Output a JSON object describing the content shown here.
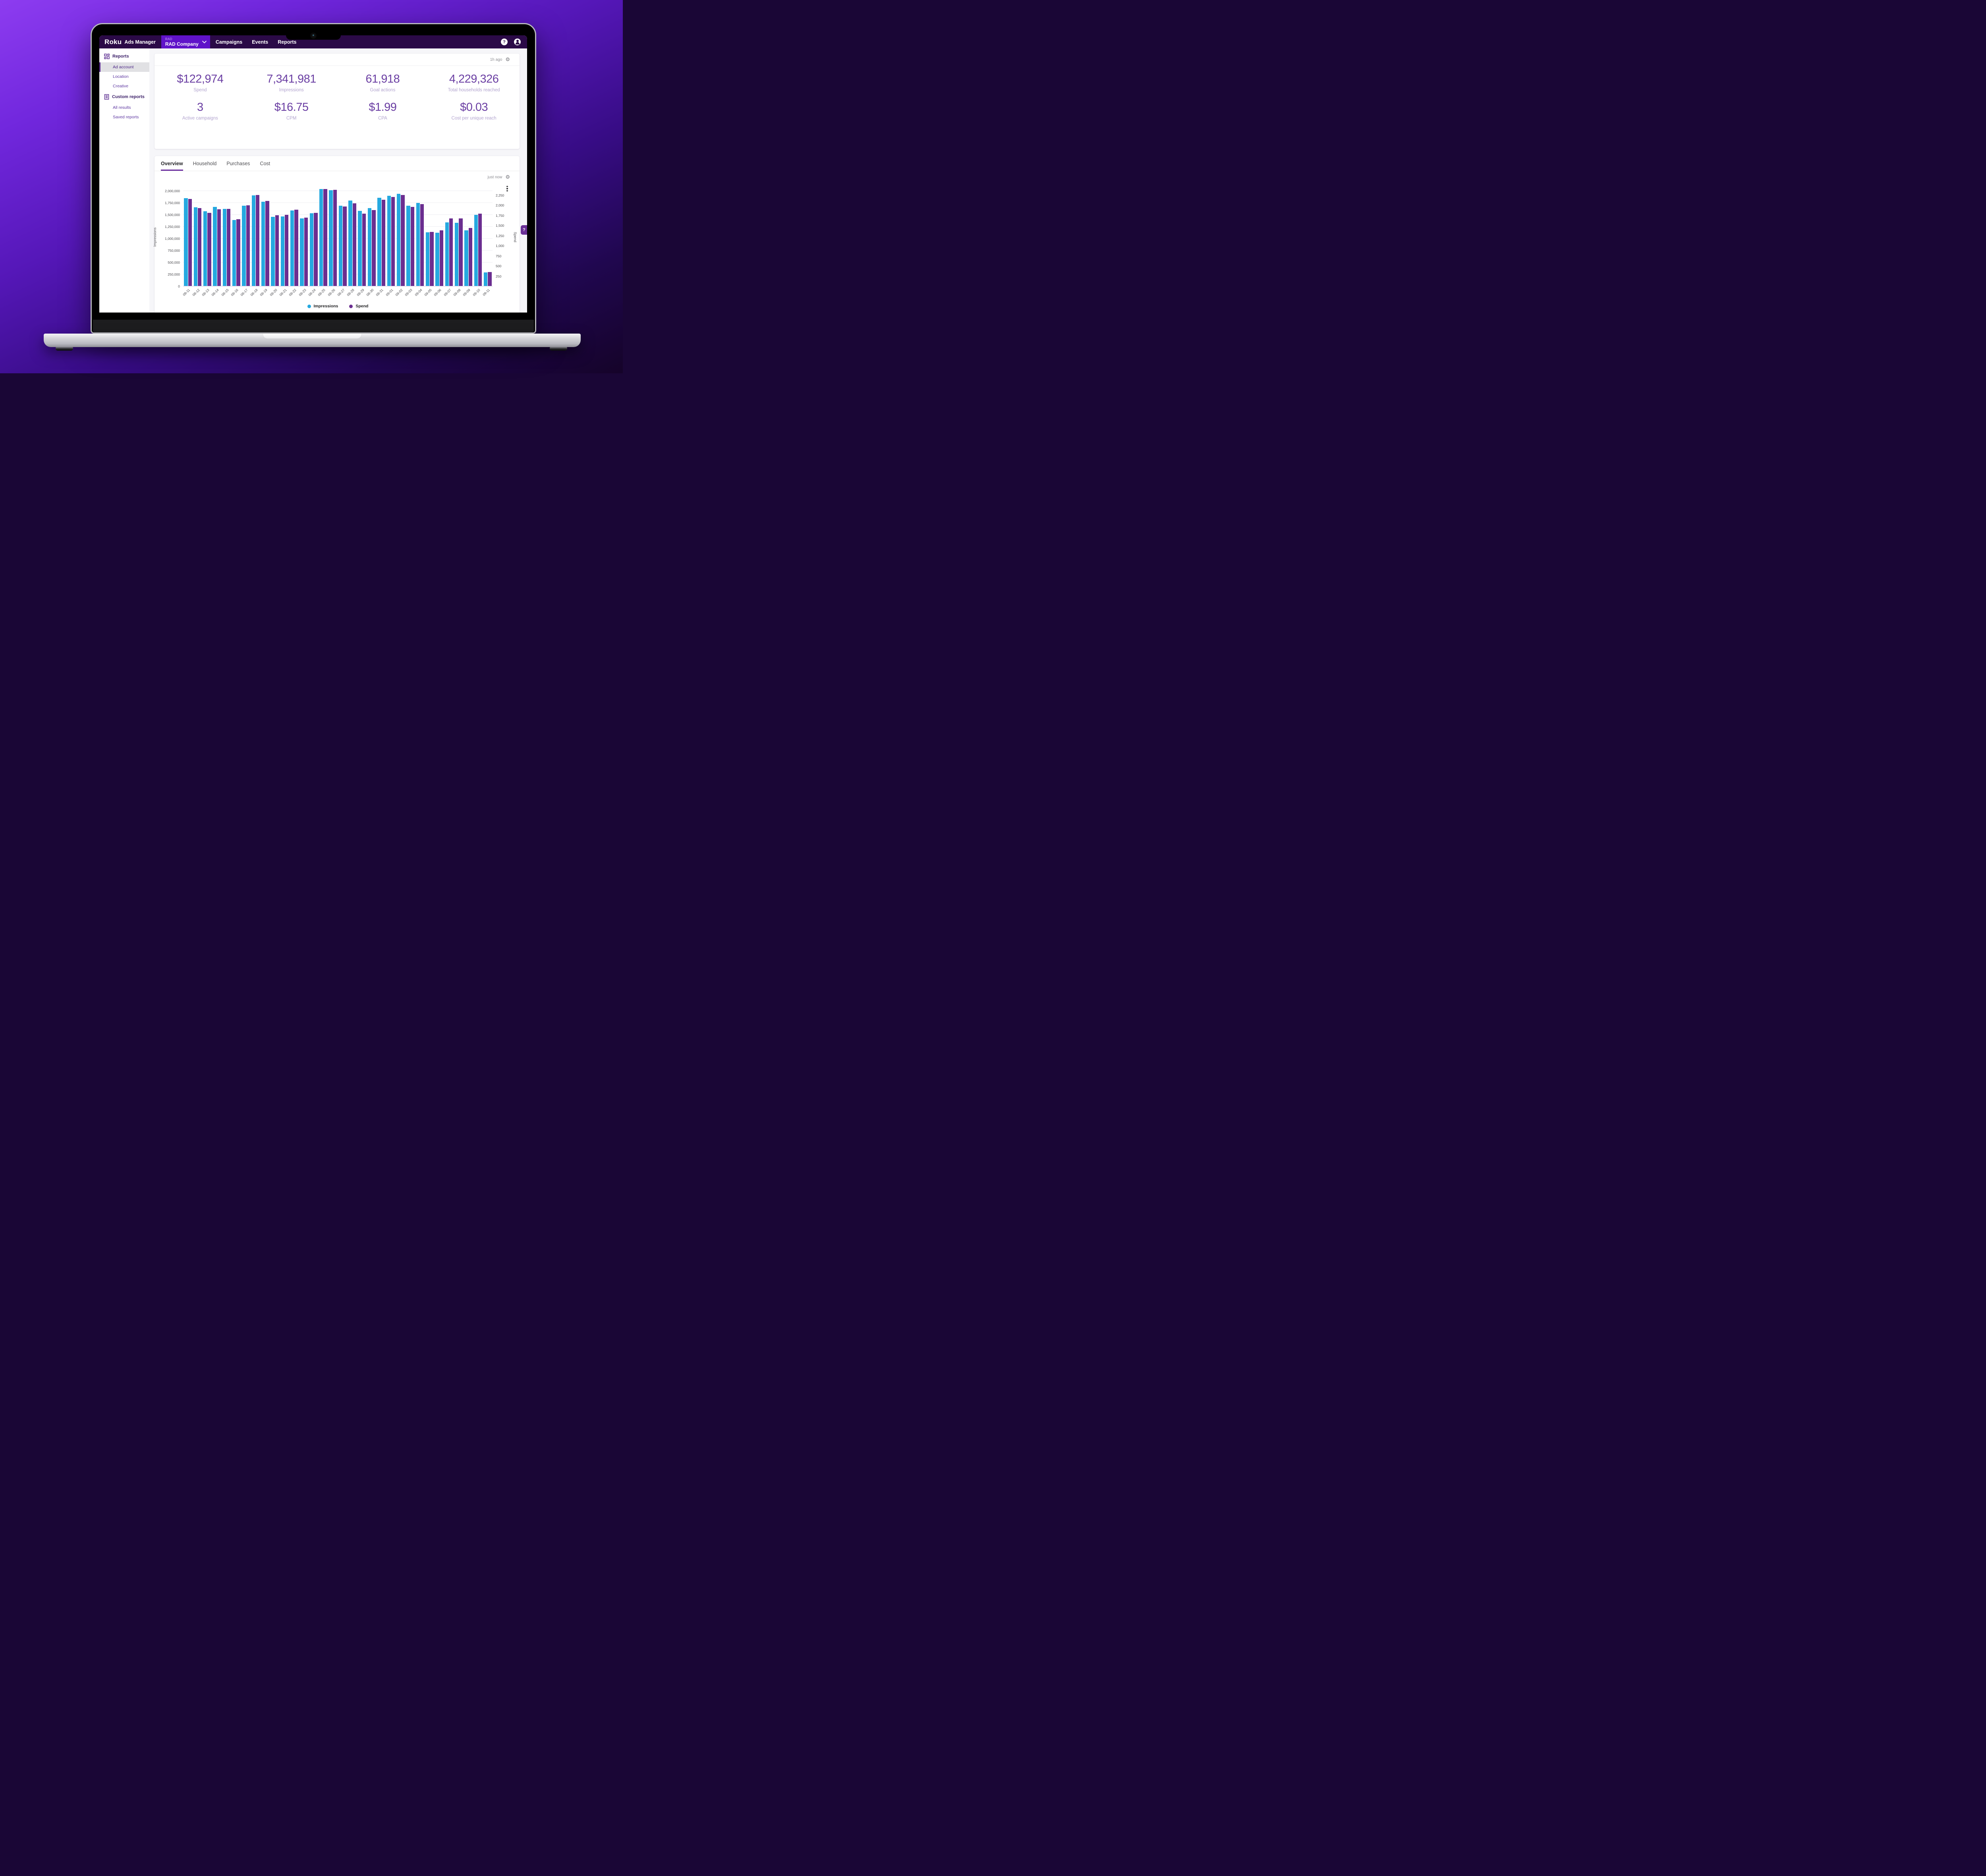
{
  "nav": {
    "brand": {
      "logo": "Roku",
      "product": "Ads Manager"
    },
    "account": {
      "eyebrow": "RAD",
      "name": "RAD Company"
    },
    "items": [
      {
        "label": "Campaigns"
      },
      {
        "label": "Events"
      },
      {
        "label": "Reports"
      }
    ],
    "icons": [
      "help-icon",
      "profile-icon"
    ]
  },
  "sidebar": {
    "sections": [
      {
        "header": "Reports",
        "icon": "dashboard-grid-icon",
        "items": [
          {
            "label": "Ad account",
            "selected": true
          },
          {
            "label": "Location",
            "selected": false
          },
          {
            "label": "Creative",
            "selected": false
          }
        ]
      },
      {
        "header": "Custom reports",
        "icon": "document-icon",
        "items": [
          {
            "label": "All results",
            "selected": false
          },
          {
            "label": "Saved reports",
            "selected": false
          }
        ]
      }
    ]
  },
  "stats_card": {
    "updated": "1h ago",
    "rows": [
      [
        {
          "value": "$122,974",
          "label": "Spend"
        },
        {
          "value": "7,341,981",
          "label": "Impressions"
        },
        {
          "value": "61,918",
          "label": "Goal actions"
        },
        {
          "value": "4,229,326",
          "label": "Total households reached"
        }
      ],
      [
        {
          "value": "3",
          "label": "Active campaigns"
        },
        {
          "value": "$16.75",
          "label": "CPM"
        },
        {
          "value": "$1.99",
          "label": "CPA"
        },
        {
          "value": "$0.03",
          "label": "Cost per unique reach"
        }
      ]
    ]
  },
  "chart_card": {
    "tabs": [
      {
        "label": "Overview",
        "active": true
      },
      {
        "label": "Household",
        "active": false
      },
      {
        "label": "Purchases",
        "active": false
      },
      {
        "label": "Cost",
        "active": false
      }
    ],
    "updated": "just now"
  },
  "chart_data": {
    "type": "bar",
    "categories": [
      "08-11",
      "08-12",
      "08-13",
      "08-14",
      "08-15",
      "08-16",
      "08-17",
      "08-18",
      "08-19",
      "08-20",
      "08-21",
      "08-22",
      "08-23",
      "08-24",
      "08-25",
      "08-26",
      "08-27",
      "08-28",
      "08-29",
      "08-30",
      "08-31",
      "09-01",
      "09-02",
      "09-03",
      "09-04",
      "09-05",
      "09-06",
      "09-07",
      "09-08",
      "09-09",
      "09-10",
      "09-11"
    ],
    "series": [
      {
        "name": "Impressions",
        "axis": "left",
        "color": "#25a9e0",
        "values": [
          1850000,
          1658000,
          1577000,
          1672000,
          1627000,
          1391000,
          1691000,
          1910000,
          1779000,
          1462000,
          1468000,
          1597000,
          1426000,
          1536000,
          2046000,
          2018000,
          1697000,
          1798000,
          1586000,
          1641000,
          1863000,
          1900000,
          1941000,
          1694000,
          1755000,
          1134000,
          1123000,
          1346000,
          1331000,
          1176000,
          1503000,
          292000
        ]
      },
      {
        "name": "Spend",
        "axis": "right",
        "color": "#6b2e90",
        "values": [
          2160,
          1932,
          1814,
          1907,
          1917,
          1656,
          2001,
          2256,
          2112,
          1760,
          1763,
          1897,
          1698,
          1812,
          2410,
          2383,
          1969,
          2053,
          1800,
          1884,
          2139,
          2212,
          2259,
          1966,
          2031,
          1349,
          1389,
          1676,
          1676,
          1445,
          1793,
          349
        ]
      }
    ],
    "axes": {
      "left": {
        "title": "Impressions",
        "scale_max": 2077000,
        "ticks": [
          {
            "v": 0,
            "label": "0"
          },
          {
            "v": 250000,
            "label": "250,000"
          },
          {
            "v": 500000,
            "label": "500,000"
          },
          {
            "v": 750000,
            "label": "750,000"
          },
          {
            "v": 1000000,
            "label": "1,000,000"
          },
          {
            "v": 1250000,
            "label": "1,250,000"
          },
          {
            "v": 1500000,
            "label": "1,500,000"
          },
          {
            "v": 1750000,
            "label": "1,750,000"
          },
          {
            "v": 2000000,
            "label": "2,000,000"
          }
        ]
      },
      "right": {
        "title": "Spend",
        "scale_max": 2445,
        "ticks": [
          {
            "v": 250,
            "label": "250"
          },
          {
            "v": 500,
            "label": "500"
          },
          {
            "v": 750,
            "label": "750"
          },
          {
            "v": 1000,
            "label": "1,000"
          },
          {
            "v": 1250,
            "label": "1,250"
          },
          {
            "v": 1500,
            "label": "1,500"
          },
          {
            "v": 1750,
            "label": "1,750"
          },
          {
            "v": 2000,
            "label": "2,000"
          },
          {
            "v": 2250,
            "label": "2,250"
          }
        ]
      }
    },
    "legend": [
      "Impressions",
      "Spend"
    ],
    "grid": true,
    "legend_position": "bottom"
  },
  "help_tab": {
    "label": "?"
  },
  "colors": {
    "nav_bg": "#2b0a47",
    "switcher_bg": "#6013c9",
    "accent_purple": "#6b2da0",
    "stat_value": "#6b3fa3",
    "bar_blue": "#25a9e0",
    "bar_purple": "#6b2e90",
    "selected_item_bg": "#e1e1e4",
    "main_bg": "#f6f6f9"
  }
}
